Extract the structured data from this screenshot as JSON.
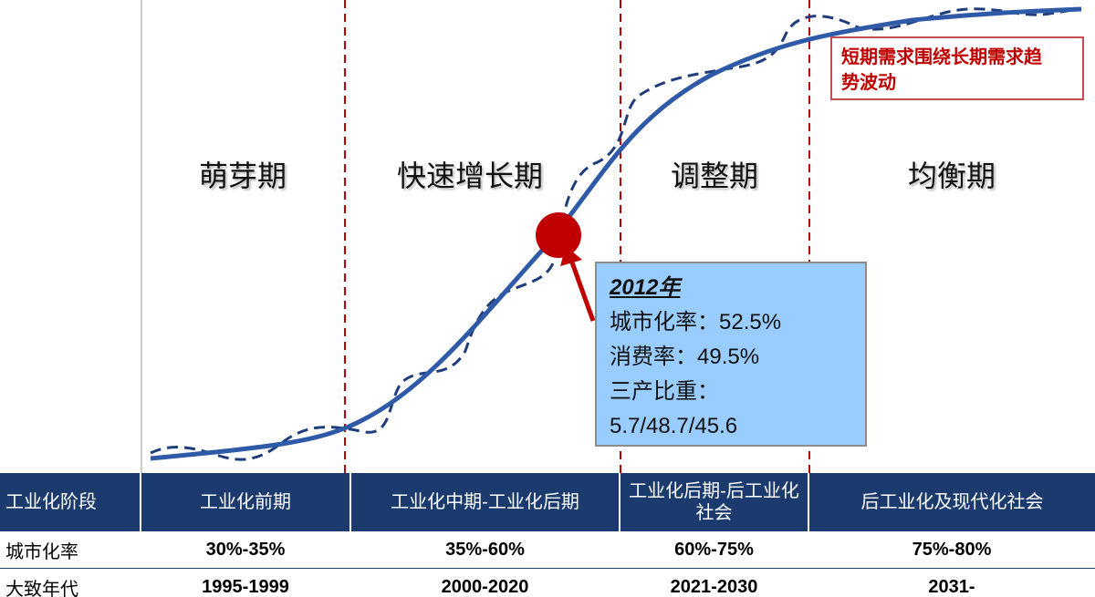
{
  "phases": [
    "萌芽期",
    "快速增长期",
    "调整期",
    "均衡期"
  ],
  "callout": {
    "year": "2012年",
    "lines": [
      "城市化率：52.5%",
      "消费率：49.5%",
      "三产比重：",
      "5.7/48.7/45.6"
    ]
  },
  "note": "短期需求围绕长期需求趋势波动",
  "table": {
    "header": [
      "工业化阶段",
      "工业化前期",
      "工业化中期-工业化后期",
      "工业化后期-后工业化社会",
      "后工业化及现代化社会"
    ],
    "rows": [
      [
        "城市化率",
        "30%-35%",
        "35%-60%",
        "60%-75%",
        "75%-80%"
      ],
      [
        "大致年代",
        "1995-1999",
        "2000-2020",
        "2021-2030",
        "2031-"
      ]
    ]
  }
}
